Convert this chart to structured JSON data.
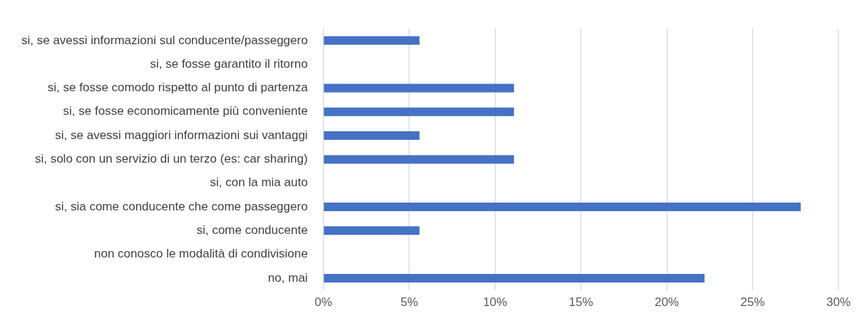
{
  "chart_data": {
    "type": "bar",
    "orientation": "horizontal",
    "categories": [
      "si, se avessi informazioni sul conducente/passeggero",
      "si, se fosse garantito il ritorno",
      "si, se fosse comodo rispetto al punto di partenza",
      "si, se fosse economicamente più conveniente",
      "si, se avessi maggiori informazioni sui vantaggi",
      "si, solo con un servizio di un terzo (es: car sharing)",
      "si, con la mia auto",
      "si, sia come conducente che come passeggero",
      "si, come conducente",
      "non conosco le modalità di condivisione",
      "no, mai"
    ],
    "values": [
      5.6,
      0,
      11.1,
      11.1,
      5.6,
      11.1,
      0,
      27.8,
      5.6,
      0,
      22.2
    ],
    "color": "#4472c4",
    "xlim": [
      0,
      30
    ],
    "xticks": [
      {
        "value": 0,
        "label": "0%"
      },
      {
        "value": 5,
        "label": "5%"
      },
      {
        "value": 10,
        "label": "10%"
      },
      {
        "value": 15,
        "label": "15%"
      },
      {
        "value": 20,
        "label": "20%"
      },
      {
        "value": 25,
        "label": "25%"
      },
      {
        "value": 30,
        "label": "30%"
      }
    ],
    "grid": "x",
    "legend": false
  }
}
